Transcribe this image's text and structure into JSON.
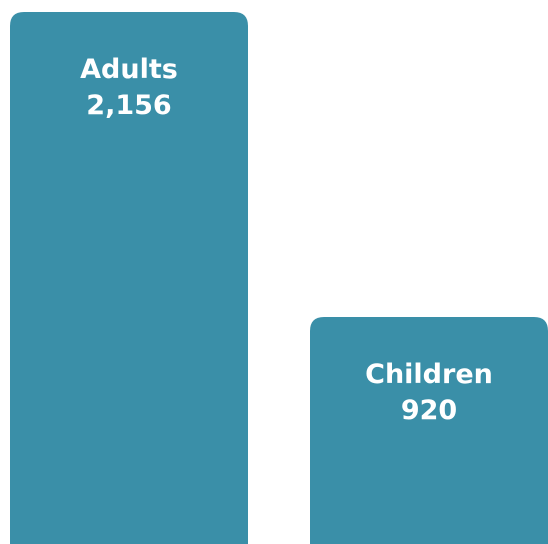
{
  "chart_data": {
    "type": "bar",
    "categories": [
      "Adults",
      "Children"
    ],
    "values": [
      2156,
      920
    ],
    "value_labels": [
      "2,156",
      "920"
    ],
    "bar_color": "#3a8fa8",
    "background": "#ffffff",
    "label_color": "#ffffff",
    "title": "",
    "xlabel": "",
    "ylabel": "",
    "grid": false,
    "legend": "none"
  }
}
